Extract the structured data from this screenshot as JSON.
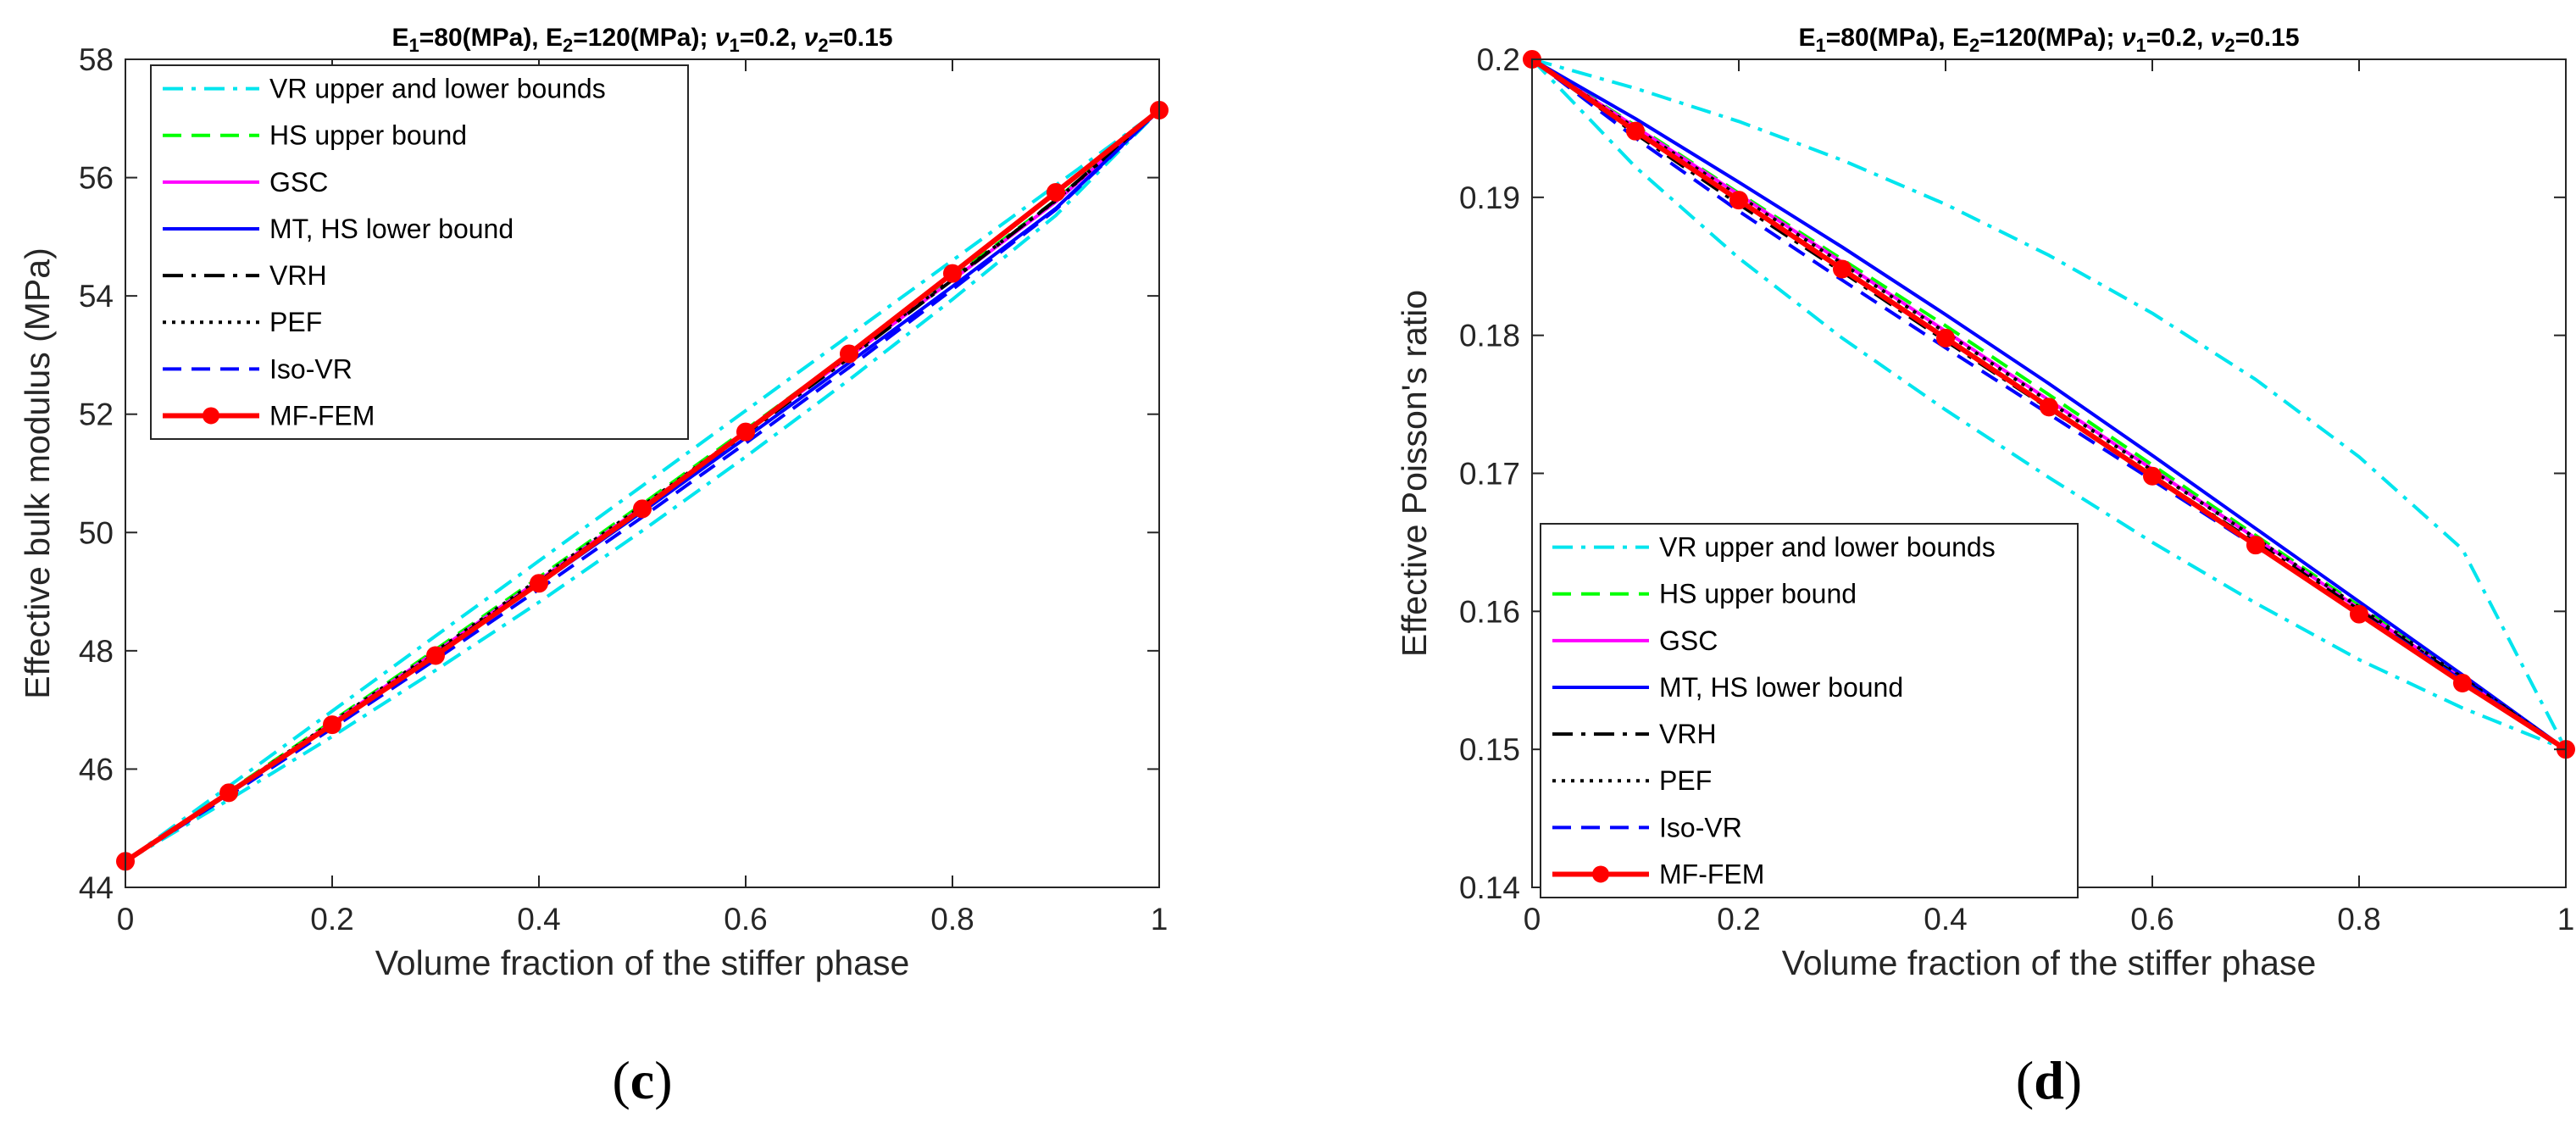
{
  "chart_data": [
    {
      "type": "line",
      "title": "E_1=80(MPa), E_2=120(MPa); ν_1=0.2, ν_2=0.15",
      "title_parts": [
        "E",
        "1",
        "=80(MPa), E",
        "2",
        "=120(MPa); ",
        "ν",
        "1",
        "=0.2, ",
        "ν",
        "2",
        "=0.15"
      ],
      "xlabel": "Volume fraction of the stiffer phase",
      "ylabel": "Effective bulk modulus (MPa)",
      "xlim": [
        0,
        1
      ],
      "ylim": [
        44,
        58
      ],
      "xticks": [
        0,
        0.2,
        0.4,
        0.6,
        0.8,
        1
      ],
      "xtick_labels": [
        "0",
        "0.2",
        "0.4",
        "0.6",
        "0.8",
        "1"
      ],
      "yticks": [
        44,
        46,
        48,
        50,
        52,
        54,
        56,
        58
      ],
      "ytick_labels": [
        "44",
        "46",
        "48",
        "50",
        "52",
        "54",
        "56",
        "58"
      ],
      "legend_position": "top-left",
      "panel_label": "c",
      "x": [
        0,
        0.1,
        0.2,
        0.3,
        0.4,
        0.5,
        0.6,
        0.7,
        0.8,
        0.9,
        1
      ],
      "series": [
        {
          "name": "VR upper and lower bounds",
          "color": "#00e5ee",
          "style": "dashdot",
          "width": 4,
          "values": [
            44.44,
            45.48,
            46.55,
            47.67,
            48.82,
            50.03,
            51.28,
            52.58,
            53.94,
            55.36,
            57.14
          ]
        },
        {
          "name": "",
          "color": "#00e5ee",
          "style": "dashdot",
          "width": 4,
          "values": [
            44.44,
            45.71,
            46.98,
            48.25,
            49.52,
            50.79,
            52.06,
            53.33,
            54.6,
            55.87,
            57.14
          ]
        },
        {
          "name": "HS upper bound",
          "color": "#00ff00",
          "style": "dashed",
          "width": 4,
          "values": [
            44.44,
            45.62,
            46.81,
            48.02,
            49.24,
            50.48,
            51.74,
            53.02,
            54.31,
            55.62,
            57.14
          ]
        },
        {
          "name": "GSC",
          "color": "#ff00ff",
          "style": "solid",
          "width": 4,
          "values": [
            44.44,
            45.6,
            46.78,
            47.98,
            49.19,
            50.43,
            51.69,
            52.97,
            54.27,
            55.59,
            57.14
          ]
        },
        {
          "name": "MT, HS lower bound",
          "color": "#0000ff",
          "style": "solid",
          "width": 4,
          "values": [
            44.44,
            45.58,
            46.74,
            47.92,
            49.13,
            50.35,
            51.6,
            52.87,
            54.16,
            55.48,
            57.14
          ]
        },
        {
          "name": "VRH",
          "color": "#000000",
          "style": "dashdot",
          "width": 4,
          "values": [
            44.44,
            45.59,
            46.76,
            47.95,
            49.17,
            50.41,
            51.67,
            52.95,
            54.27,
            55.62,
            57.14
          ]
        },
        {
          "name": "PEF",
          "color": "#000000",
          "style": "dotted",
          "width": 4,
          "values": [
            44.44,
            45.61,
            46.79,
            47.99,
            49.21,
            50.45,
            51.71,
            52.99,
            54.29,
            55.61,
            57.14
          ]
        },
        {
          "name": "Iso-VR",
          "color": "#0000ff",
          "style": "dashed",
          "width": 4,
          "values": [
            44.44,
            45.55,
            46.69,
            47.85,
            49.04,
            50.26,
            51.51,
            52.79,
            54.11,
            55.46,
            57.14
          ]
        },
        {
          "name": "MF-FEM",
          "color": "#ff0000",
          "style": "solid",
          "width": 6,
          "markers": true,
          "values": [
            44.44,
            45.6,
            46.75,
            47.92,
            49.14,
            50.4,
            51.7,
            53.02,
            54.38,
            55.75,
            57.14
          ]
        }
      ]
    },
    {
      "type": "line",
      "title": "E_1=80(MPa), E_2=120(MPa); ν_1=0.2, ν_2=0.15",
      "title_parts": [
        "E",
        "1",
        "=80(MPa), E",
        "2",
        "=120(MPa); ",
        "ν",
        "1",
        "=0.2, ",
        "ν",
        "2",
        "=0.15"
      ],
      "xlabel": "Volume fraction of the stiffer phase",
      "ylabel": "Effective Poisson's ratio",
      "xlim": [
        0,
        1
      ],
      "ylim": [
        0.14,
        0.2
      ],
      "xticks": [
        0,
        0.2,
        0.4,
        0.6,
        0.8,
        1
      ],
      "xtick_labels": [
        "0",
        "0.2",
        "0.4",
        "0.6",
        "0.8",
        "1"
      ],
      "yticks": [
        0.14,
        0.15,
        0.16,
        0.17,
        0.18,
        0.19,
        0.2
      ],
      "ytick_labels": [
        "0.14",
        "0.15",
        "0.16",
        "0.17",
        "0.18",
        "0.19",
        "0.2"
      ],
      "legend_position": "bottom-left",
      "panel_label": "d",
      "x": [
        0,
        0.1,
        0.2,
        0.3,
        0.4,
        0.5,
        0.6,
        0.7,
        0.8,
        0.9,
        1
      ],
      "series": [
        {
          "name": "VR upper and lower bounds",
          "color": "#00e5ee",
          "style": "dashdot",
          "width": 4,
          "values": [
            0.2,
            0.1979,
            0.1955,
            0.1927,
            0.1895,
            0.1858,
            0.1816,
            0.1768,
            0.1712,
            0.1645,
            0.15
          ]
        },
        {
          "name": "",
          "color": "#00e5ee",
          "style": "dashdot",
          "width": 4,
          "values": [
            0.2,
            0.1922,
            0.1856,
            0.1798,
            0.1746,
            0.1697,
            0.165,
            0.1606,
            0.1565,
            0.153,
            0.15
          ]
        },
        {
          "name": "HS upper bound",
          "color": "#00ff00",
          "style": "dashed",
          "width": 4,
          "values": [
            0.2,
            0.1952,
            0.1903,
            0.1855,
            0.1807,
            0.1757,
            0.1706,
            0.1655,
            0.1604,
            0.1552,
            0.15
          ]
        },
        {
          "name": "GSC",
          "color": "#ff00ff",
          "style": "solid",
          "width": 4,
          "values": [
            0.2,
            0.1951,
            0.1902,
            0.1853,
            0.1803,
            0.1753,
            0.1703,
            0.1653,
            0.1602,
            0.1551,
            0.15
          ]
        },
        {
          "name": "MT, HS lower bound",
          "color": "#0000ff",
          "style": "solid",
          "width": 4,
          "values": [
            0.2,
            0.1957,
            0.1911,
            0.1864,
            0.1815,
            0.1765,
            0.1713,
            0.166,
            0.1607,
            0.1554,
            0.15
          ]
        },
        {
          "name": "VRH",
          "color": "#000000",
          "style": "dashdot",
          "width": 4,
          "values": [
            0.2,
            0.1946,
            0.1895,
            0.1846,
            0.1796,
            0.1747,
            0.1698,
            0.165,
            0.1601,
            0.1551,
            0.15
          ]
        },
        {
          "name": "PEF",
          "color": "#000000",
          "style": "dotted",
          "width": 4,
          "values": [
            0.2,
            0.195,
            0.1901,
            0.1852,
            0.1802,
            0.1752,
            0.1702,
            0.1653,
            0.1603,
            0.1552,
            0.15
          ]
        },
        {
          "name": "Iso-VR",
          "color": "#0000ff",
          "style": "dashed",
          "width": 4,
          "values": [
            0.2,
            0.1943,
            0.189,
            0.184,
            0.1791,
            0.1743,
            0.1695,
            0.1647,
            0.1599,
            0.155,
            0.15
          ]
        },
        {
          "name": "MF-FEM",
          "color": "#ff0000",
          "style": "solid",
          "width": 6,
          "markers": true,
          "values": [
            0.2,
            0.1948,
            0.1898,
            0.1848,
            0.1798,
            0.1748,
            0.1698,
            0.1648,
            0.1598,
            0.1548,
            0.15
          ]
        }
      ]
    }
  ]
}
